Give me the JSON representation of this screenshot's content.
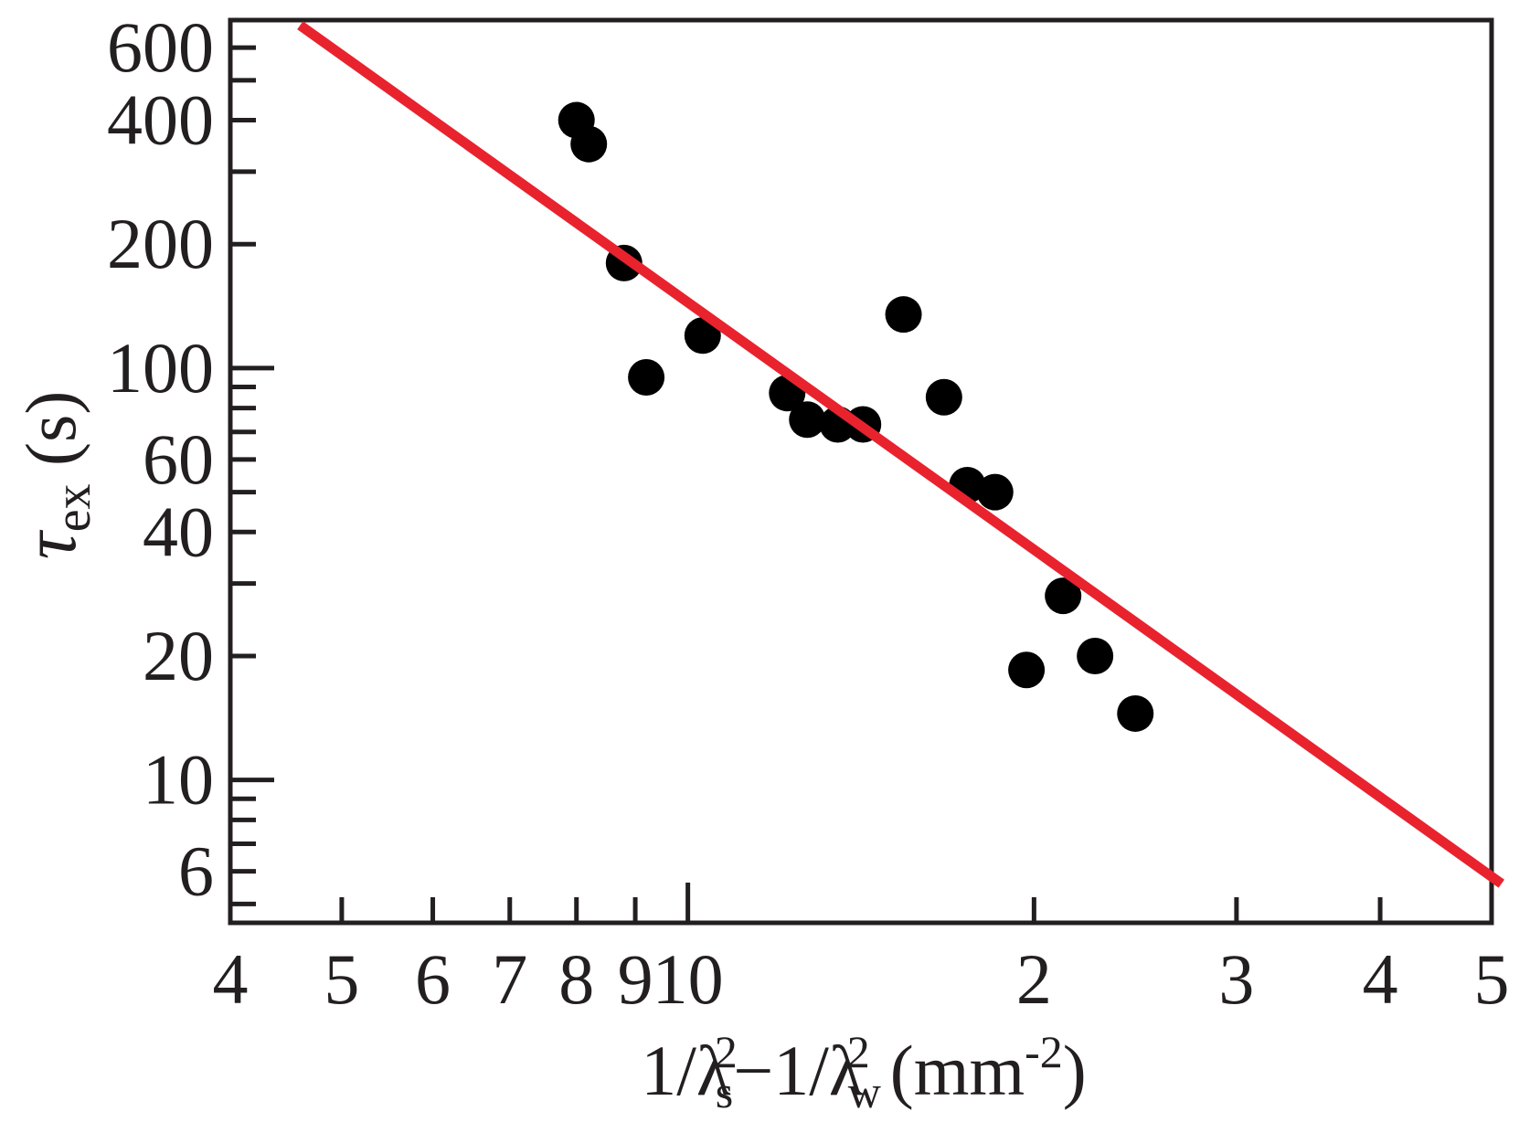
{
  "chart_data": {
    "type": "scatter",
    "title": "",
    "xlabel": {
      "prefix": "1/λ",
      "sub1": "s",
      "sup1": "2",
      "middle": "−1/λ",
      "sub2": "w",
      "sup2": "2",
      "unit_open": "(mm",
      "unit_sup": "-2",
      "unit_close": ")"
    },
    "ylabel": {
      "symbol": "τ",
      "sub": "ex",
      "unit": "(s)"
    },
    "x_scale": "log",
    "y_scale": "log",
    "xlim": [
      0.4,
      5
    ],
    "ylim": [
      4.5,
      700
    ],
    "grid": false,
    "x_ticks": [
      {
        "value": 0.4,
        "label": "4"
      },
      {
        "value": 0.5,
        "label": "5"
      },
      {
        "value": 0.6,
        "label": "6"
      },
      {
        "value": 0.7,
        "label": "7"
      },
      {
        "value": 0.8,
        "label": "8"
      },
      {
        "value": 0.9,
        "label": "9"
      },
      {
        "value": 1.0,
        "label": "10"
      },
      {
        "value": 2.0,
        "label": "2"
      },
      {
        "value": 3.0,
        "label": "3"
      },
      {
        "value": 4.0,
        "label": "4"
      },
      {
        "value": 5.0,
        "label": "5"
      }
    ],
    "y_ticks": [
      {
        "value": 600,
        "label": "600"
      },
      {
        "value": 400,
        "label": "400"
      },
      {
        "value": 200,
        "label": "200"
      },
      {
        "value": 100,
        "label": "100"
      },
      {
        "value": 60,
        "label": "60"
      },
      {
        "value": 40,
        "label": "40"
      },
      {
        "value": 20,
        "label": "20"
      },
      {
        "value": 10,
        "label": "10"
      },
      {
        "value": 6,
        "label": "6"
      }
    ],
    "y_minor_ticks": [
      500,
      300,
      90,
      80,
      70,
      50,
      30,
      9,
      8,
      7,
      5
    ],
    "series": [
      {
        "kind": "points",
        "color": "#000000",
        "points": [
          {
            "x": 0.8,
            "y": 400
          },
          {
            "x": 0.82,
            "y": 350
          },
          {
            "x": 0.88,
            "y": 180
          },
          {
            "x": 0.92,
            "y": 95
          },
          {
            "x": 1.03,
            "y": 120
          },
          {
            "x": 1.22,
            "y": 87
          },
          {
            "x": 1.27,
            "y": 75
          },
          {
            "x": 1.35,
            "y": 73
          },
          {
            "x": 1.42,
            "y": 73
          },
          {
            "x": 1.54,
            "y": 135
          },
          {
            "x": 1.67,
            "y": 85
          },
          {
            "x": 1.75,
            "y": 52
          },
          {
            "x": 1.85,
            "y": 50
          },
          {
            "x": 1.97,
            "y": 18.5
          },
          {
            "x": 2.12,
            "y": 28
          },
          {
            "x": 2.26,
            "y": 20
          },
          {
            "x": 2.45,
            "y": 14.5
          }
        ]
      },
      {
        "kind": "fit-line",
        "color": "#e8232e",
        "points": [
          {
            "x": 0.46,
            "y": 680
          },
          {
            "x": 5.1,
            "y": 5.6
          }
        ]
      }
    ]
  }
}
